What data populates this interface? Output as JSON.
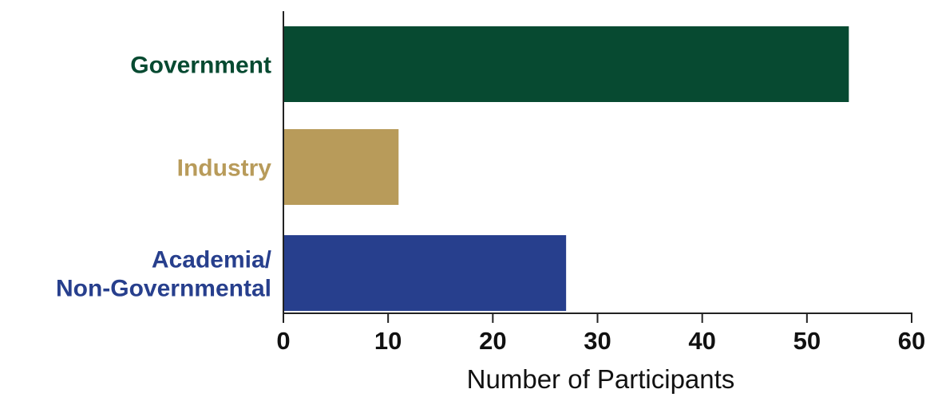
{
  "chart_data": {
    "type": "bar",
    "orientation": "horizontal",
    "title": "",
    "xlabel": "Number of Participants",
    "ylabel": "",
    "xlim": [
      0,
      60
    ],
    "xticks": [
      0,
      10,
      20,
      30,
      40,
      50,
      60
    ],
    "grid": false,
    "categories": [
      {
        "lines": [
          "Government"
        ],
        "value": 54,
        "color": "#074a31"
      },
      {
        "lines": [
          "Industry"
        ],
        "value": 11,
        "color": "#b89b5a"
      },
      {
        "lines": [
          "Academia/",
          "Non-Governmental"
        ],
        "value": 27,
        "color": "#273f8d"
      }
    ]
  }
}
